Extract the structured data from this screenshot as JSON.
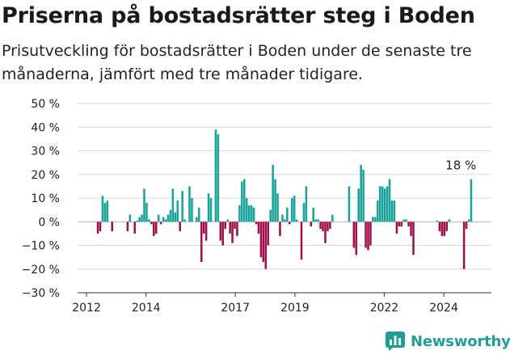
{
  "header": {
    "title": "Priserna på bostadsrätter steg i Boden",
    "subtitle": "Prisutveckling för bostadsrätter i Boden under de senaste tre månaderna, jämfört med tre månader tidigare."
  },
  "brand": {
    "name": "Newsworthy"
  },
  "colors": {
    "positive": "#1aa39a",
    "negative": "#a0104a",
    "grid": "#d9d9d9",
    "axis": "#333333"
  },
  "chart_data": {
    "type": "bar",
    "unit": "%",
    "ylim": [
      -30,
      50
    ],
    "yticks": [
      50,
      40,
      30,
      20,
      10,
      0,
      -10,
      -20,
      -30
    ],
    "ytick_labels": [
      "50 %",
      "40 %",
      "30 %",
      "20 %",
      "10 %",
      "0 %",
      "−10 %",
      "−20 %",
      "−30 %"
    ],
    "xlim": [
      2011.7,
      2025.6
    ],
    "xticks": [
      2012,
      2014,
      2017,
      2019,
      2022,
      2024
    ],
    "xtick_labels": [
      "2012",
      "2014",
      "2017",
      "2019",
      "2022",
      "2024"
    ],
    "annotation": {
      "text": "18 %",
      "x": 2024.9,
      "y": 18
    },
    "bars": [
      {
        "x": 2012.38,
        "value": -5
      },
      {
        "x": 2012.46,
        "value": -4
      },
      {
        "x": 2012.54,
        "value": 11
      },
      {
        "x": 2012.62,
        "value": 8
      },
      {
        "x": 2012.7,
        "value": 9
      },
      {
        "x": 2012.86,
        "value": -4
      },
      {
        "x": 2013.38,
        "value": -4
      },
      {
        "x": 2013.46,
        "value": 3
      },
      {
        "x": 2013.62,
        "value": -5
      },
      {
        "x": 2013.7,
        "value": 0.5
      },
      {
        "x": 2013.78,
        "value": 2
      },
      {
        "x": 2013.86,
        "value": 3
      },
      {
        "x": 2013.94,
        "value": 14
      },
      {
        "x": 2014.02,
        "value": 8
      },
      {
        "x": 2014.1,
        "value": 1
      },
      {
        "x": 2014.18,
        "value": -1
      },
      {
        "x": 2014.26,
        "value": -6
      },
      {
        "x": 2014.34,
        "value": -5
      },
      {
        "x": 2014.42,
        "value": 3
      },
      {
        "x": 2014.5,
        "value": -1
      },
      {
        "x": 2014.58,
        "value": 2
      },
      {
        "x": 2014.66,
        "value": 1
      },
      {
        "x": 2014.74,
        "value": 3
      },
      {
        "x": 2014.82,
        "value": 5
      },
      {
        "x": 2014.9,
        "value": 14
      },
      {
        "x": 2014.98,
        "value": 4
      },
      {
        "x": 2015.06,
        "value": 9
      },
      {
        "x": 2015.14,
        "value": -4
      },
      {
        "x": 2015.22,
        "value": 13
      },
      {
        "x": 2015.3,
        "value": 1
      },
      {
        "x": 2015.46,
        "value": 15
      },
      {
        "x": 2015.54,
        "value": 10
      },
      {
        "x": 2015.7,
        "value": 2
      },
      {
        "x": 2015.78,
        "value": 6
      },
      {
        "x": 2015.86,
        "value": -17
      },
      {
        "x": 2015.94,
        "value": -5
      },
      {
        "x": 2016.02,
        "value": -8
      },
      {
        "x": 2016.1,
        "value": 12
      },
      {
        "x": 2016.18,
        "value": 10
      },
      {
        "x": 2016.34,
        "value": 39
      },
      {
        "x": 2016.42,
        "value": 37
      },
      {
        "x": 2016.5,
        "value": -8
      },
      {
        "x": 2016.58,
        "value": -10
      },
      {
        "x": 2016.66,
        "value": -3
      },
      {
        "x": 2016.74,
        "value": 1
      },
      {
        "x": 2016.82,
        "value": -5
      },
      {
        "x": 2016.9,
        "value": -9
      },
      {
        "x": 2016.98,
        "value": -3
      },
      {
        "x": 2017.06,
        "value": -6
      },
      {
        "x": 2017.14,
        "value": 7
      },
      {
        "x": 2017.22,
        "value": 17
      },
      {
        "x": 2017.3,
        "value": 18
      },
      {
        "x": 2017.38,
        "value": 10
      },
      {
        "x": 2017.46,
        "value": 7
      },
      {
        "x": 2017.54,
        "value": 7
      },
      {
        "x": 2017.62,
        "value": 6
      },
      {
        "x": 2017.7,
        "value": -1
      },
      {
        "x": 2017.78,
        "value": -5
      },
      {
        "x": 2017.86,
        "value": -15
      },
      {
        "x": 2017.94,
        "value": -17
      },
      {
        "x": 2018.02,
        "value": -20
      },
      {
        "x": 2018.1,
        "value": -10
      },
      {
        "x": 2018.18,
        "value": 5
      },
      {
        "x": 2018.26,
        "value": 24
      },
      {
        "x": 2018.34,
        "value": 18
      },
      {
        "x": 2018.42,
        "value": 12
      },
      {
        "x": 2018.5,
        "value": -6
      },
      {
        "x": 2018.58,
        "value": 3
      },
      {
        "x": 2018.66,
        "value": 1
      },
      {
        "x": 2018.74,
        "value": 6
      },
      {
        "x": 2018.82,
        "value": -1
      },
      {
        "x": 2018.9,
        "value": 10
      },
      {
        "x": 2018.98,
        "value": 11
      },
      {
        "x": 2019.06,
        "value": 1
      },
      {
        "x": 2019.22,
        "value": -16
      },
      {
        "x": 2019.3,
        "value": 8
      },
      {
        "x": 2019.38,
        "value": 15
      },
      {
        "x": 2019.54,
        "value": -2
      },
      {
        "x": 2019.62,
        "value": 6
      },
      {
        "x": 2019.7,
        "value": 1
      },
      {
        "x": 2019.78,
        "value": 1
      },
      {
        "x": 2019.86,
        "value": -3
      },
      {
        "x": 2019.94,
        "value": -4
      },
      {
        "x": 2020.02,
        "value": -9
      },
      {
        "x": 2020.1,
        "value": -4
      },
      {
        "x": 2020.18,
        "value": -3
      },
      {
        "x": 2020.26,
        "value": 3
      },
      {
        "x": 2020.82,
        "value": 15
      },
      {
        "x": 2020.98,
        "value": -11
      },
      {
        "x": 2021.06,
        "value": -14
      },
      {
        "x": 2021.14,
        "value": 14
      },
      {
        "x": 2021.22,
        "value": 24
      },
      {
        "x": 2021.3,
        "value": 22
      },
      {
        "x": 2021.38,
        "value": -11
      },
      {
        "x": 2021.46,
        "value": -12
      },
      {
        "x": 2021.54,
        "value": -10
      },
      {
        "x": 2021.62,
        "value": 2
      },
      {
        "x": 2021.7,
        "value": 2
      },
      {
        "x": 2021.78,
        "value": 9
      },
      {
        "x": 2021.86,
        "value": 15
      },
      {
        "x": 2021.94,
        "value": 15
      },
      {
        "x": 2022.02,
        "value": 14
      },
      {
        "x": 2022.1,
        "value": 15
      },
      {
        "x": 2022.18,
        "value": 18
      },
      {
        "x": 2022.26,
        "value": 9
      },
      {
        "x": 2022.34,
        "value": 9
      },
      {
        "x": 2022.42,
        "value": -5
      },
      {
        "x": 2022.5,
        "value": -2
      },
      {
        "x": 2022.58,
        "value": -2
      },
      {
        "x": 2022.66,
        "value": 1
      },
      {
        "x": 2022.74,
        "value": 1
      },
      {
        "x": 2022.82,
        "value": -2
      },
      {
        "x": 2022.9,
        "value": -6
      },
      {
        "x": 2022.98,
        "value": -14
      },
      {
        "x": 2023.78,
        "value": 0.5
      },
      {
        "x": 2023.86,
        "value": -4
      },
      {
        "x": 2023.94,
        "value": -6
      },
      {
        "x": 2024.02,
        "value": -6
      },
      {
        "x": 2024.1,
        "value": -4
      },
      {
        "x": 2024.18,
        "value": 1
      },
      {
        "x": 2024.68,
        "value": -20
      },
      {
        "x": 2024.76,
        "value": -3
      },
      {
        "x": 2024.84,
        "value": 1
      },
      {
        "x": 2024.92,
        "value": 18
      }
    ]
  }
}
